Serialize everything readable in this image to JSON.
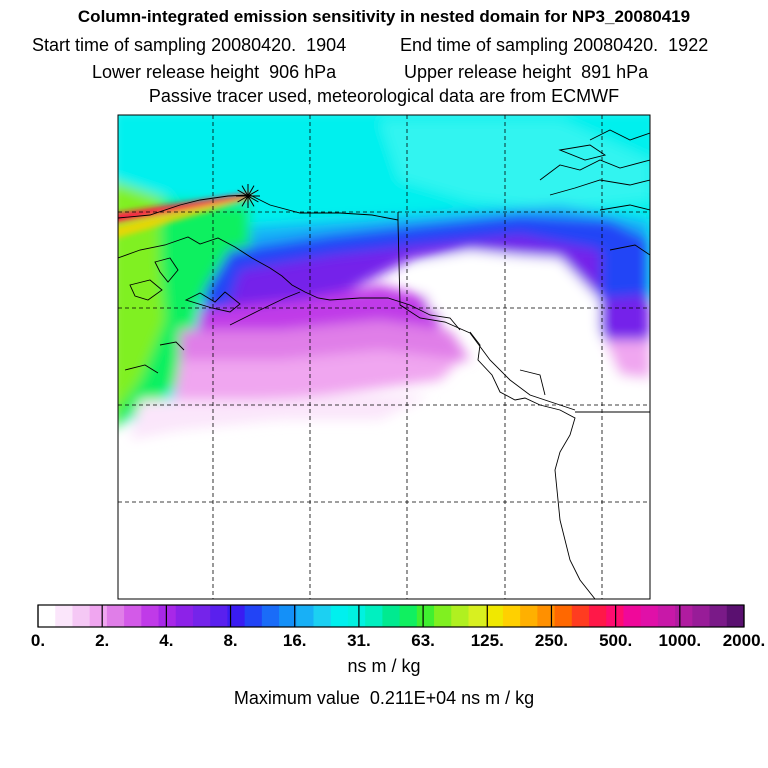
{
  "header": {
    "title": "Column-integrated emission sensitivity in nested domain for NP3_20080419",
    "start_time": "Start time of sampling 20080420.  1904",
    "end_time": "End time of sampling 20080420.  1922",
    "lower_release": "Lower release height  906 hPa",
    "upper_release": "Upper release height  891 hPa",
    "tracer_note": "Passive tracer used, meteorological data are from ECMWF"
  },
  "colorbar": {
    "tick_labels": [
      "0.",
      "2.",
      "4.",
      "8.",
      "16.",
      "31.",
      "63.",
      "125.",
      "250.",
      "500.",
      "1000.",
      "2000."
    ],
    "colors": [
      "#ffffff",
      "#fbe6fb",
      "#f5c8f5",
      "#f0a6f0",
      "#e07ee8",
      "#d35ae8",
      "#c03ae8",
      "#a828e8",
      "#8d22e8",
      "#7524ea",
      "#5a20ee",
      "#3a1cf2",
      "#2244f6",
      "#1a6cf8",
      "#1490f8",
      "#18b0f6",
      "#1cd0f2",
      "#00f0ee",
      "#00f2e0",
      "#00f0c0",
      "#00ea90",
      "#10f060",
      "#40f030",
      "#80f020",
      "#b0f020",
      "#d8f020",
      "#f0e800",
      "#ffd000",
      "#ffb000",
      "#ff9000",
      "#ff6800",
      "#ff3c20",
      "#ff1848",
      "#ff0c70",
      "#f0089a",
      "#e010a8",
      "#c818a8",
      "#b01ca0",
      "#981c98",
      "#7a1a88",
      "#5a1070"
    ],
    "units": "ns m / kg",
    "maximum": "Maximum value  0.211E+04 ns m / kg"
  },
  "map": {
    "release_marker": "asterisk",
    "colors": {
      "deep_cyan": "#00f0ee",
      "light_cyan": "#30f4f0",
      "sky_blue": "#18b0f6",
      "green": "#10f060",
      "lime": "#80f020",
      "blue": "#2244f6",
      "violet": "#7524ea",
      "purple": "#c03ae8",
      "magenta": "#e07ee8",
      "pink": "#f0a6f0",
      "pale_pink": "#fbe6fb",
      "red_plume": "#ff1848",
      "yellow_plume": "#ffd000"
    }
  }
}
